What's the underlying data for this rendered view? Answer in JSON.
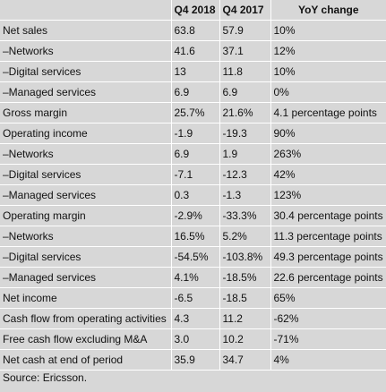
{
  "table": {
    "headers": [
      "",
      "Q4 2018",
      "Q4 2017",
      "YoY change"
    ],
    "rows": [
      {
        "label": "Net sales",
        "q4_2018": "63.8",
        "q4_2017": "57.9",
        "yoy": "10%"
      },
      {
        "label": "–Networks",
        "q4_2018": "41.6",
        "q4_2017": "37.1",
        "yoy": "12%"
      },
      {
        "label": "–Digital services",
        "q4_2018": "13",
        "q4_2017": "11.8",
        "yoy": "10%"
      },
      {
        "label": "–Managed services",
        "q4_2018": "6.9",
        "q4_2017": "6.9",
        "yoy": "0%"
      },
      {
        "label": "Gross margin",
        "q4_2018": "25.7%",
        "q4_2017": "21.6%",
        "yoy": "4.1 percentage points"
      },
      {
        "label": "Operating income",
        "q4_2018": "-1.9",
        "q4_2017": "-19.3",
        "yoy": "90%"
      },
      {
        "label": "–Networks",
        "q4_2018": "6.9",
        "q4_2017": "1.9",
        "yoy": "263%"
      },
      {
        "label": "–Digital services",
        "q4_2018": "-7.1",
        "q4_2017": "-12.3",
        "yoy": "42%"
      },
      {
        "label": "–Managed services",
        "q4_2018": "0.3",
        "q4_2017": "-1.3",
        "yoy": "123%"
      },
      {
        "label": "Operating margin",
        "q4_2018": "-2.9%",
        "q4_2017": "-33.3%",
        "yoy": "30.4 percentage points"
      },
      {
        "label": "–Networks",
        "q4_2018": "16.5%",
        "q4_2017": "5.2%",
        "yoy": "11.3 percentage points"
      },
      {
        "label": "–Digital services",
        "q4_2018": "-54.5%",
        "q4_2017": "-103.8%",
        "yoy": "49.3 percentage points"
      },
      {
        "label": "–Managed services",
        "q4_2018": "4.1%",
        "q4_2017": "-18.5%",
        "yoy": "22.6 percentage points"
      },
      {
        "label": "Net income",
        "q4_2018": "-6.5",
        "q4_2017": "-18.5",
        "yoy": "65%"
      },
      {
        "label": "Cash flow from operating activities",
        "q4_2018": "4.3",
        "q4_2017": "11.2",
        "yoy": "-62%"
      },
      {
        "label": "Free cash flow excluding M&A",
        "q4_2018": "3.0",
        "q4_2017": "10.2",
        "yoy": "-71%"
      },
      {
        "label": "Net cash at end of period",
        "q4_2018": "35.9",
        "q4_2017": "34.7",
        "yoy": "4%"
      }
    ]
  },
  "source": "Source: Ericsson."
}
